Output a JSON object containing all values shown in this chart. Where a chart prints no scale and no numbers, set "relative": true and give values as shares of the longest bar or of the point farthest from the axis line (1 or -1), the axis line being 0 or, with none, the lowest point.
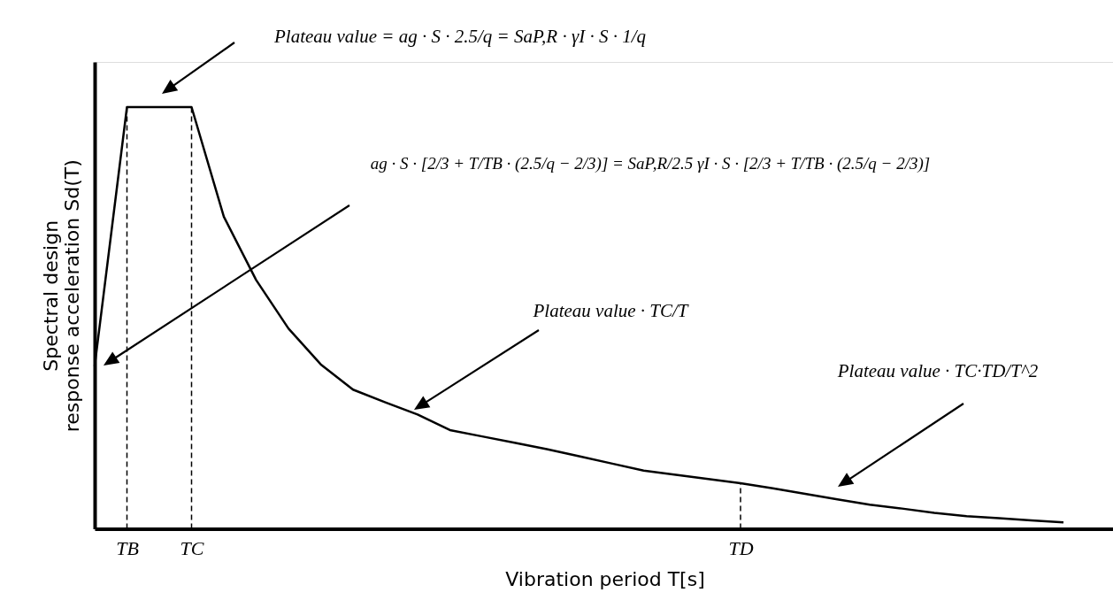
{
  "chart_data": {
    "type": "line",
    "relative": true,
    "xlabel": "Vibration period T[s]",
    "ylabel": "Spectral design response acceleration Sd(T)",
    "categories": [
      null,
      "TB",
      null,
      "TC",
      null,
      null,
      null,
      null,
      null,
      null,
      null,
      null,
      null,
      null,
      null,
      null,
      null,
      null,
      null,
      null,
      "TD",
      null,
      null,
      null,
      null,
      null,
      null,
      null,
      null,
      null,
      null
    ],
    "series": [
      {
        "color": "#000000",
        "values": [
          0.386,
          1,
          1,
          1,
          0.74,
          0.59,
          0.475,
          0.39,
          0.33,
          0.3,
          0.271,
          0.234,
          0.219,
          0.204,
          0.189,
          0.172,
          0.155,
          0.138,
          0.128,
          0.118,
          0.108,
          0.096,
          0.083,
          0.07,
          0.057,
          0.048,
          0.038,
          0.03,
          0.025,
          0.02,
          0.015
        ]
      }
    ],
    "ref_lines": [
      {
        "axis": "x",
        "value": "TB",
        "line_style": "dashed"
      },
      {
        "axis": "x",
        "value": "TC",
        "line_style": "dashed"
      },
      {
        "axis": "x",
        "value": "TD",
        "line_style": "dashed"
      }
    ],
    "annotations": [
      "Plateau value = ag · S · 2.5/q = SaP,R · γI · S · 1/q",
      "ag · S · [2/3 + T/TB · (2.5/q − 2/3)] = SaP,R/2.5 γI · S · [2/3 + T/TB · (2.5/q − 2/3)]",
      "Plateau value · TC/T",
      "Plateau value · TC·TD/T^2"
    ],
    "line_style": "solid"
  }
}
